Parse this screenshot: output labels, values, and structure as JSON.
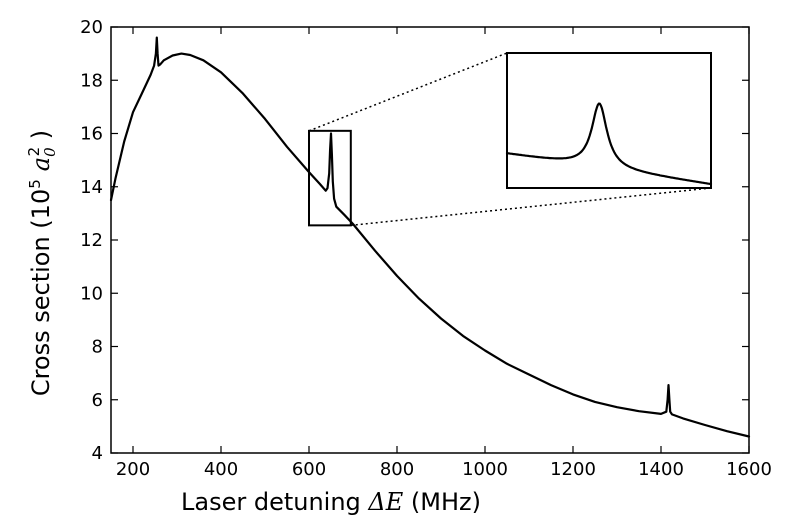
{
  "chart_data": {
    "type": "line",
    "xlabel": {
      "prefix": "Laser detuning ",
      "math": "ΔE",
      "suffix": " (MHz)"
    },
    "ylabel": {
      "prefix": "Cross section (",
      "base": "10",
      "exp": "5",
      "var": "a",
      "var_sub": "0",
      "var_sup": "2",
      "suffix": " )"
    },
    "xlim": [
      150,
      1600
    ],
    "ylim": [
      4,
      20
    ],
    "xticks": [
      200,
      400,
      600,
      800,
      1000,
      1200,
      1400,
      1600
    ],
    "yticks": [
      4,
      6,
      8,
      10,
      12,
      14,
      16,
      18,
      20
    ],
    "series": [
      {
        "color": "#000000",
        "points": [
          [
            150,
            13.5
          ],
          [
            160,
            14.3
          ],
          [
            180,
            15.7
          ],
          [
            200,
            16.8
          ],
          [
            220,
            17.5
          ],
          [
            240,
            18.2
          ],
          [
            248,
            18.55
          ],
          [
            252,
            19.0
          ],
          [
            254,
            19.6
          ],
          [
            256,
            19.0
          ],
          [
            258,
            18.55
          ],
          [
            262,
            18.6
          ],
          [
            270,
            18.75
          ],
          [
            290,
            18.93
          ],
          [
            310,
            19.0
          ],
          [
            330,
            18.95
          ],
          [
            360,
            18.75
          ],
          [
            400,
            18.3
          ],
          [
            450,
            17.5
          ],
          [
            500,
            16.55
          ],
          [
            550,
            15.5
          ],
          [
            600,
            14.55
          ],
          [
            625,
            14.1
          ],
          [
            638,
            13.85
          ],
          [
            642,
            13.95
          ],
          [
            646,
            14.5
          ],
          [
            648,
            15.4
          ],
          [
            650,
            16.0
          ],
          [
            652,
            15.2
          ],
          [
            654,
            14.2
          ],
          [
            657,
            13.55
          ],
          [
            662,
            13.25
          ],
          [
            680,
            12.95
          ],
          [
            700,
            12.6
          ],
          [
            750,
            11.6
          ],
          [
            800,
            10.65
          ],
          [
            850,
            9.8
          ],
          [
            900,
            9.05
          ],
          [
            950,
            8.4
          ],
          [
            1000,
            7.85
          ],
          [
            1050,
            7.35
          ],
          [
            1100,
            6.95
          ],
          [
            1150,
            6.55
          ],
          [
            1200,
            6.2
          ],
          [
            1250,
            5.92
          ],
          [
            1300,
            5.72
          ],
          [
            1350,
            5.57
          ],
          [
            1400,
            5.47
          ],
          [
            1412,
            5.55
          ],
          [
            1415,
            6.0
          ],
          [
            1417,
            6.55
          ],
          [
            1419,
            6.0
          ],
          [
            1421,
            5.55
          ],
          [
            1425,
            5.45
          ],
          [
            1450,
            5.3
          ],
          [
            1500,
            5.05
          ],
          [
            1550,
            4.82
          ],
          [
            1600,
            4.62
          ]
        ]
      }
    ],
    "zoom_box": {
      "xlim": [
        600,
        695
      ],
      "ylim": [
        12.55,
        16.1
      ]
    },
    "inset": {
      "xlim": [
        600,
        695
      ],
      "ylim": [
        12.55,
        16.1
      ]
    },
    "grid": false,
    "legend": "none"
  }
}
